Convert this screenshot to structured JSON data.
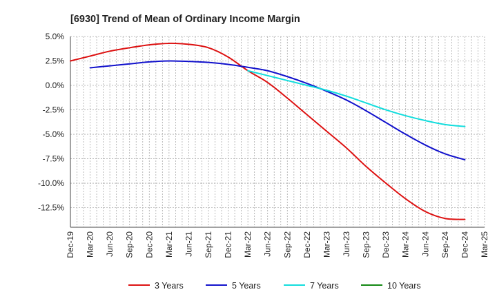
{
  "chart_data": {
    "type": "line",
    "title": "[6930]  Trend of Mean of Ordinary Income Margin",
    "xlabel": "",
    "ylabel": "",
    "ylim": [
      -14.5,
      5.0
    ],
    "y_ticks": [
      5.0,
      2.5,
      0.0,
      -2.5,
      -5.0,
      -7.5,
      -10.0,
      -12.5
    ],
    "y_tick_labels": [
      "5.0%",
      "2.5%",
      "0.0%",
      "-2.5%",
      "-5.0%",
      "-7.5%",
      "-10.0%",
      "-12.5%"
    ],
    "x_tick_labels": [
      "Dec-19",
      "Mar-20",
      "Jun-20",
      "Sep-20",
      "Dec-20",
      "Mar-21",
      "Jun-21",
      "Sep-21",
      "Dec-21",
      "Mar-22",
      "Jun-22",
      "Sep-22",
      "Dec-22",
      "Mar-23",
      "Jun-23",
      "Sep-23",
      "Dec-23",
      "Mar-24",
      "Jun-24",
      "Sep-24",
      "Dec-24",
      "Mar-25"
    ],
    "grid": true,
    "legend_position": "bottom",
    "series": [
      {
        "name": "3 Years",
        "color": "#dd1111",
        "points": [
          [
            "Dec-19",
            2.5
          ],
          [
            "Mar-20",
            3.0
          ],
          [
            "Jun-20",
            3.5
          ],
          [
            "Sep-20",
            3.85
          ],
          [
            "Dec-20",
            4.15
          ],
          [
            "Mar-21",
            4.3
          ],
          [
            "Jun-21",
            4.2
          ],
          [
            "Sep-21",
            3.85
          ],
          [
            "Dec-21",
            2.9
          ],
          [
            "Mar-22",
            1.5
          ],
          [
            "Jun-22",
            0.3
          ],
          [
            "Sep-22",
            -1.3
          ],
          [
            "Dec-22",
            -3.0
          ],
          [
            "Mar-23",
            -4.7
          ],
          [
            "Jun-23",
            -6.4
          ],
          [
            "Sep-23",
            -8.3
          ],
          [
            "Dec-23",
            -10.0
          ],
          [
            "Mar-24",
            -11.6
          ],
          [
            "Jun-24",
            -12.9
          ],
          [
            "Sep-24",
            -13.6
          ],
          [
            "Dec-24",
            -13.7
          ]
        ]
      },
      {
        "name": "5 Years",
        "color": "#1111cc",
        "points": [
          [
            "Mar-20",
            1.8
          ],
          [
            "Jun-20",
            2.0
          ],
          [
            "Sep-20",
            2.2
          ],
          [
            "Dec-20",
            2.4
          ],
          [
            "Mar-21",
            2.5
          ],
          [
            "Jun-21",
            2.45
          ],
          [
            "Sep-21",
            2.35
          ],
          [
            "Dec-21",
            2.15
          ],
          [
            "Mar-22",
            1.85
          ],
          [
            "Jun-22",
            1.5
          ],
          [
            "Sep-22",
            0.9
          ],
          [
            "Dec-22",
            0.2
          ],
          [
            "Mar-23",
            -0.6
          ],
          [
            "Jun-23",
            -1.5
          ],
          [
            "Sep-23",
            -2.6
          ],
          [
            "Dec-23",
            -3.8
          ],
          [
            "Mar-24",
            -5.0
          ],
          [
            "Jun-24",
            -6.1
          ],
          [
            "Sep-24",
            -7.0
          ],
          [
            "Dec-24",
            -7.6
          ]
        ]
      },
      {
        "name": "7 Years",
        "color": "#11dddd",
        "points": [
          [
            "Mar-22",
            1.5
          ],
          [
            "Jun-22",
            1.0
          ],
          [
            "Sep-22",
            0.5
          ],
          [
            "Dec-22",
            0.0
          ],
          [
            "Mar-23",
            -0.5
          ],
          [
            "Jun-23",
            -1.1
          ],
          [
            "Sep-23",
            -1.8
          ],
          [
            "Dec-23",
            -2.5
          ],
          [
            "Mar-24",
            -3.1
          ],
          [
            "Jun-24",
            -3.6
          ],
          [
            "Sep-24",
            -4.0
          ],
          [
            "Dec-24",
            -4.2
          ]
        ]
      },
      {
        "name": "10 Years",
        "color": "#118811",
        "points": []
      }
    ]
  }
}
